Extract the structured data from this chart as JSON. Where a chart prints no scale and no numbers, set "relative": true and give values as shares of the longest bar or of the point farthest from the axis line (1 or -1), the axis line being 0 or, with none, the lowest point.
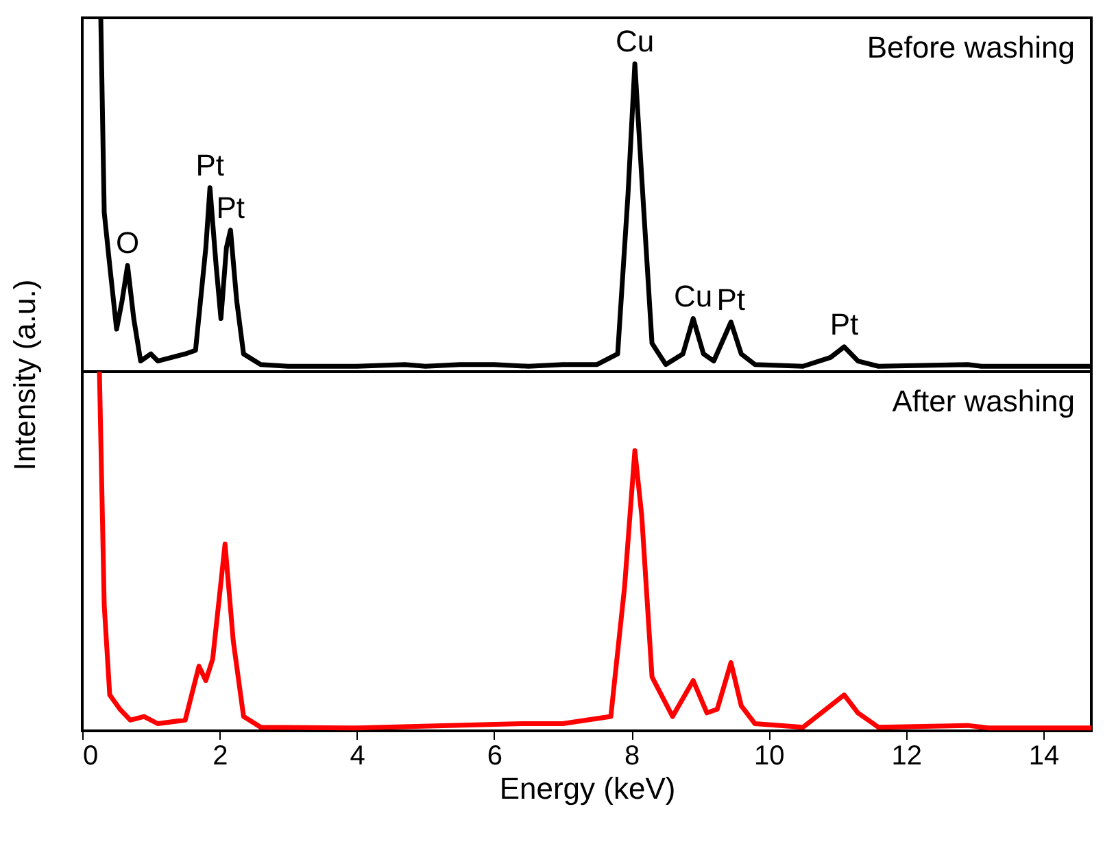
{
  "chart_data": [
    {
      "type": "line",
      "relative": true,
      "ylabel": "Intensity (a.u.)",
      "xlim": [
        0,
        14.7
      ],
      "tick_labels": false,
      "series": [
        {
          "name": "Before washing",
          "color": "#000000",
          "line_style": "solid",
          "x": [
            0.25,
            0.27,
            0.32,
            0.4,
            0.5,
            0.58,
            0.66,
            0.75,
            0.85,
            1.0,
            1.1,
            1.3,
            1.5,
            1.65,
            1.8,
            1.86,
            1.95,
            2.02,
            2.1,
            2.16,
            2.25,
            2.35,
            2.6,
            3,
            4,
            4.7,
            5,
            5.5,
            6,
            6.5,
            7,
            7.5,
            7.8,
            7.95,
            8.05,
            8.15,
            8.3,
            8.5,
            8.75,
            8.9,
            9.05,
            9.2,
            9.45,
            9.6,
            9.8,
            10.5,
            10.9,
            11.1,
            11.3,
            11.6,
            12.9,
            13.1,
            14.7
          ],
          "values": [
            1.0,
            1.0,
            0.45,
            0.3,
            0.12,
            0.2,
            0.3,
            0.15,
            0.03,
            0.05,
            0.03,
            0.04,
            0.05,
            0.06,
            0.35,
            0.52,
            0.3,
            0.15,
            0.35,
            0.4,
            0.2,
            0.05,
            0.02,
            0.015,
            0.015,
            0.02,
            0.015,
            0.02,
            0.02,
            0.015,
            0.02,
            0.02,
            0.05,
            0.5,
            0.87,
            0.55,
            0.08,
            0.02,
            0.05,
            0.15,
            0.05,
            0.03,
            0.14,
            0.05,
            0.02,
            0.015,
            0.04,
            0.07,
            0.03,
            0.015,
            0.02,
            0.015,
            0.015
          ]
        }
      ],
      "annotations": [
        {
          "text": "O",
          "x": 0.66,
          "y": 0.3
        },
        {
          "text": "Pt",
          "x": 1.86,
          "y": 0.52
        },
        {
          "text": "Pt",
          "x": 2.16,
          "y": 0.4
        },
        {
          "text": "Cu",
          "x": 8.05,
          "y": 0.87
        },
        {
          "text": "Cu",
          "x": 8.9,
          "y": 0.15
        },
        {
          "text": "Pt",
          "x": 9.45,
          "y": 0.14
        },
        {
          "text": "Pt",
          "x": 11.1,
          "y": 0.07
        }
      ]
    },
    {
      "type": "line",
      "relative": true,
      "xlabel": "Energy (keV)",
      "xlim": [
        0,
        14.7
      ],
      "xticks": [
        0,
        2,
        4,
        6,
        8,
        10,
        12,
        14
      ],
      "tick_labels": "x",
      "series": [
        {
          "name": "After washing",
          "color": "#ff0000",
          "line_style": "solid",
          "x": [
            0.25,
            0.32,
            0.4,
            0.55,
            0.7,
            0.9,
            1.1,
            1.5,
            1.7,
            1.8,
            1.9,
            2.08,
            2.2,
            2.35,
            2.6,
            4,
            6.4,
            7,
            7.7,
            7.9,
            8.05,
            8.15,
            8.3,
            8.6,
            8.9,
            9.1,
            9.25,
            9.45,
            9.6,
            9.8,
            10.5,
            11.1,
            11.3,
            11.6,
            12.9,
            13.2,
            14.7
          ],
          "values": [
            1.0,
            0.35,
            0.1,
            0.06,
            0.03,
            0.04,
            0.02,
            0.03,
            0.18,
            0.14,
            0.2,
            0.52,
            0.25,
            0.04,
            0.01,
            0.008,
            0.02,
            0.02,
            0.04,
            0.4,
            0.78,
            0.6,
            0.15,
            0.04,
            0.14,
            0.05,
            0.06,
            0.19,
            0.07,
            0.02,
            0.01,
            0.1,
            0.05,
            0.01,
            0.015,
            0.008,
            0.008
          ]
        }
      ]
    }
  ]
}
